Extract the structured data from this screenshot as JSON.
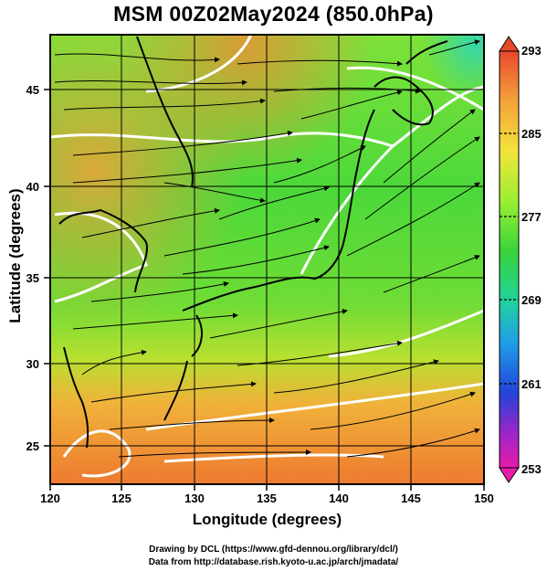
{
  "title": "MSM 00Z02May2024 (850.0hPa)",
  "map": {
    "xlabel": "Longitude (degrees)",
    "ylabel": "Latitude  (degrees)",
    "lon_ticks": [
      "120",
      "125",
      "130",
      "135",
      "140",
      "145",
      "150"
    ],
    "lat_ticks": [
      "25",
      "30",
      "35",
      "40",
      "45"
    ]
  },
  "colorbar": {
    "labels": [
      "293",
      "285",
      "277",
      "269",
      "261",
      "253"
    ],
    "colors": [
      "#e8482c",
      "#f4a23a",
      "#f2e43a",
      "#9cee32",
      "#3ad33a",
      "#1fd39c",
      "#1f9de8",
      "#2244d8",
      "#a024c8",
      "#e81ca8"
    ]
  },
  "credits": {
    "line1": "Drawing by DCL (https://www.gfd-dennou.org/library/dcl/)",
    "line2": "Data from http://database.rish.kyoto-u.ac.jp/arch/jmadata/"
  }
}
